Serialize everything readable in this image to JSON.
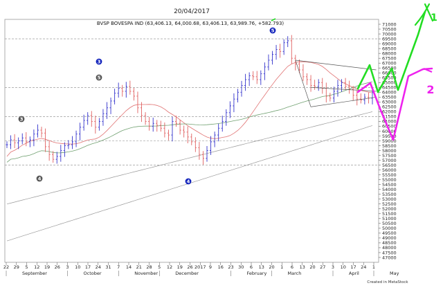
{
  "header_date": "20/04/2017",
  "chart_data": {
    "type": "candlestick",
    "title": "BVSP BOVESPA IND (63,406.13, 64,000.68, 63,406.13, 63,989.76, +582.793)",
    "ylim": [
      46500,
      71500
    ],
    "y_ticks": [
      71000,
      70500,
      70000,
      69500,
      69000,
      68500,
      68000,
      67500,
      67000,
      66500,
      66000,
      65500,
      65000,
      64500,
      64000,
      63500,
      63000,
      62500,
      62000,
      61500,
      61000,
      60500,
      60000,
      59500,
      59000,
      58500,
      58000,
      57500,
      57000,
      56500,
      56000,
      55500,
      55000,
      54500,
      54000,
      53500,
      53000,
      52500,
      52000,
      51500,
      51000,
      50500,
      50000,
      49500,
      49000,
      48500,
      48000,
      47500,
      47000
    ],
    "x_tick_labels": [
      "22",
      "29",
      "5",
      "12",
      "19",
      "26",
      "3",
      "10",
      "17",
      "24",
      "31",
      "7",
      "14",
      "21",
      "28",
      "5",
      "12",
      "19",
      "26",
      "2017",
      "9",
      "16",
      "23",
      "30",
      "6",
      "13",
      "20",
      "1",
      "6",
      "13",
      "20",
      "27",
      "3",
      "10",
      "17",
      "24",
      "1"
    ],
    "month_labels": [
      "September",
      "October",
      "November",
      "December",
      "2017",
      "February",
      "March",
      "April",
      "May"
    ],
    "closes": [
      58600,
      59100,
      58800,
      59000,
      59300,
      58900,
      59100,
      59700,
      60100,
      59800,
      58400,
      57600,
      57100,
      57400,
      58000,
      58500,
      58600,
      58900,
      59700,
      60400,
      61100,
      61600,
      61000,
      60400,
      61000,
      61800,
      62400,
      63100,
      63900,
      64400,
      64100,
      64600,
      64100,
      63600,
      62400,
      61600,
      61000,
      60500,
      60800,
      60600,
      60300,
      59800,
      59600,
      61000,
      60800,
      60100,
      59900,
      59400,
      58900,
      58300,
      57600,
      57200,
      58000,
      58900,
      59600,
      60300,
      61000,
      61900,
      62600,
      63300,
      64000,
      64700,
      65300,
      65700,
      65600,
      65300,
      65900,
      66600,
      67300,
      67900,
      68400,
      68200,
      69100,
      69300,
      67500,
      66900,
      66300,
      65600,
      65300,
      64700,
      64600,
      65000,
      64400,
      63600,
      63400,
      64100,
      64700,
      65000,
      64600,
      64300,
      63700,
      63300,
      63200,
      63500,
      63400,
      64000
    ],
    "trend_line_1_start": 71000,
    "wave_labels_blue": [
      "3",
      "5",
      "4"
    ],
    "wave_labels_gray": [
      "3",
      "5",
      "3",
      "4"
    ],
    "forecast_labels": [
      "1",
      "2"
    ],
    "footer": "Created in MetaStock",
    "colors": {
      "up": "#3333cc",
      "down": "#e06060",
      "ma_short": "#e07070",
      "ma_medium": "#70a070",
      "ma_long": "#999999",
      "forecast_1": "#22dd22",
      "forecast_2": "#ee22ee",
      "wave_blue": "#1122bb",
      "wave_gray": "#555555",
      "grid_dash": "#888888"
    }
  }
}
